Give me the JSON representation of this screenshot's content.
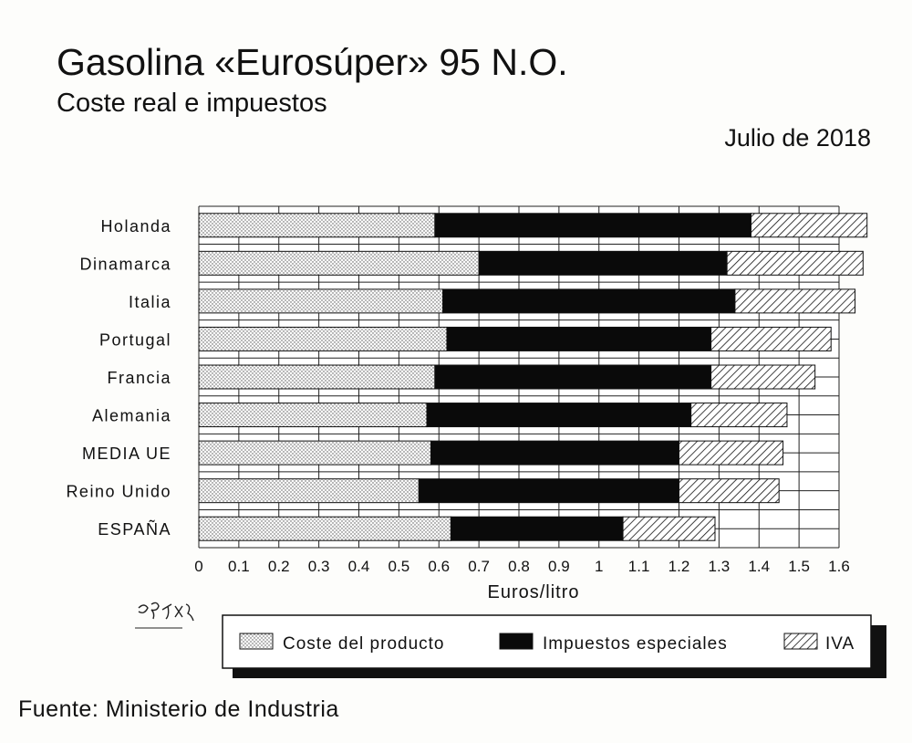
{
  "header": {
    "title": "Gasolina «Eurosúper» 95 N.O.",
    "subtitle": "Coste real e impuestos",
    "date": "Julio de 2018"
  },
  "footer": {
    "source": "Fuente: Ministerio de Industria",
    "signature": "gráfix"
  },
  "chart_data": {
    "type": "bar",
    "orientation": "horizontal",
    "stacked": true,
    "categories": [
      "Holanda",
      "Dinamarca",
      "Italia",
      "Portugal",
      "Francia",
      "Alemania",
      "MEDIA UE",
      "Reino Unido",
      "ESPAÑA"
    ],
    "series": [
      {
        "name": "Coste del producto",
        "values": [
          0.59,
          0.7,
          0.61,
          0.62,
          0.59,
          0.57,
          0.58,
          0.55,
          0.63
        ],
        "pattern": "dots"
      },
      {
        "name": "Impuestos especiales",
        "values": [
          0.79,
          0.62,
          0.73,
          0.66,
          0.69,
          0.66,
          0.62,
          0.65,
          0.43
        ],
        "pattern": "solid"
      },
      {
        "name": "IVA",
        "values": [
          0.29,
          0.34,
          0.3,
          0.3,
          0.26,
          0.24,
          0.26,
          0.25,
          0.23
        ],
        "pattern": "hatch"
      }
    ],
    "xlabel": "Euros/litro",
    "ylabel": "",
    "xlim": [
      0,
      1.6
    ],
    "xticks": [
      "0",
      "0.1",
      "0.2",
      "0.3",
      "0.4",
      "0.5",
      "0.6",
      "0.7",
      "0.8",
      "0.9",
      "1",
      "1.1",
      "1.2",
      "1.3",
      "1.4",
      "1.5",
      "1.6"
    ],
    "grid": true,
    "legend_position": "bottom"
  }
}
